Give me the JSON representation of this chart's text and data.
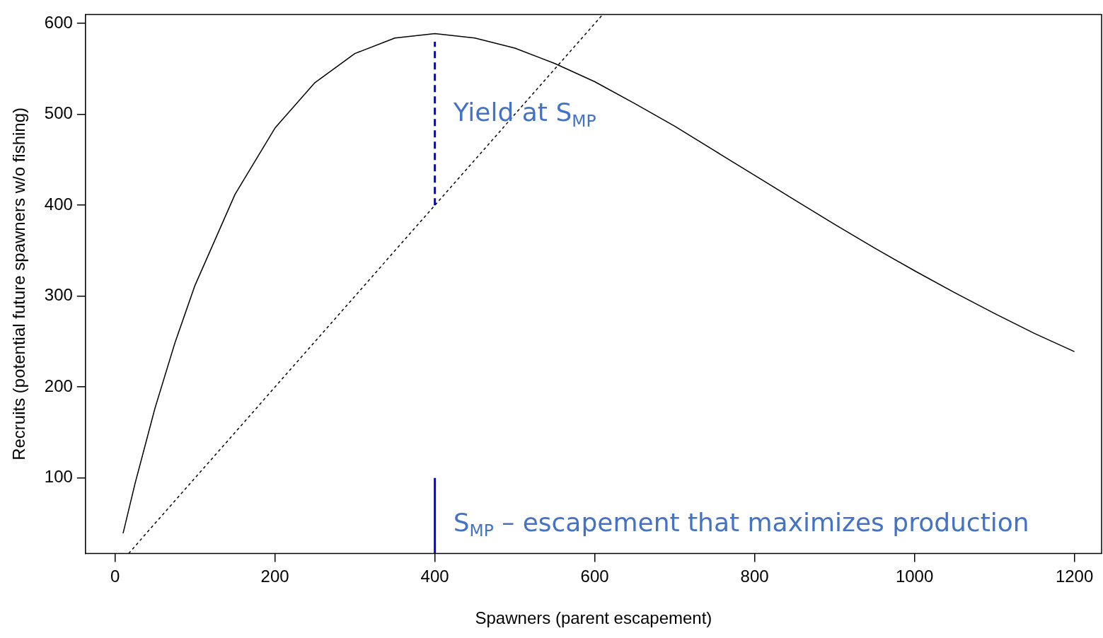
{
  "chart_data": {
    "type": "line",
    "xlabel": "Spawners (parent escapement)",
    "ylabel": "Recruits (potential future spawners w/o fishing)",
    "xlim": [
      -37,
      1234
    ],
    "ylim": [
      17,
      610
    ],
    "xticks": [
      0,
      200,
      400,
      600,
      800,
      1000,
      1200
    ],
    "yticks": [
      100,
      200,
      300,
      400,
      500,
      600
    ],
    "grid": false,
    "legend": false,
    "marker": "none",
    "series": [
      {
        "color": "#000000",
        "line_style": "solid",
        "x": [
          10,
          25,
          50,
          75,
          100,
          150,
          200,
          250,
          300,
          350,
          400,
          450,
          500,
          550,
          600,
          650,
          700,
          750,
          800,
          850,
          900,
          950,
          1000,
          1050,
          1100,
          1150,
          1200
        ],
        "values": [
          39,
          94,
          177,
          249,
          312,
          412,
          485,
          535,
          567,
          584,
          589,
          584,
          573,
          556,
          536,
          512,
          487,
          460,
          433,
          406,
          379,
          353,
          328,
          304,
          281,
          259,
          239
        ]
      },
      {
        "color": "#000000",
        "line_style": "dotted",
        "x": [
          17,
          610
        ],
        "values": [
          17,
          610
        ]
      },
      {
        "color": "#0000ff",
        "line_style": "dashed",
        "x": [
          400,
          400
        ],
        "values": [
          400,
          580
        ]
      },
      {
        "color": "#0000ff",
        "line_style": "solid",
        "x": [
          400,
          400
        ],
        "values": [
          17,
          100
        ]
      }
    ],
    "annotations": [
      {
        "text": "Yield at S$_{MP}$",
        "x": 400,
        "y": 500
      },
      {
        "text": "S$_{MP}$ – escapement that maximizes production",
        "x": 400,
        "y": 49
      }
    ]
  }
}
